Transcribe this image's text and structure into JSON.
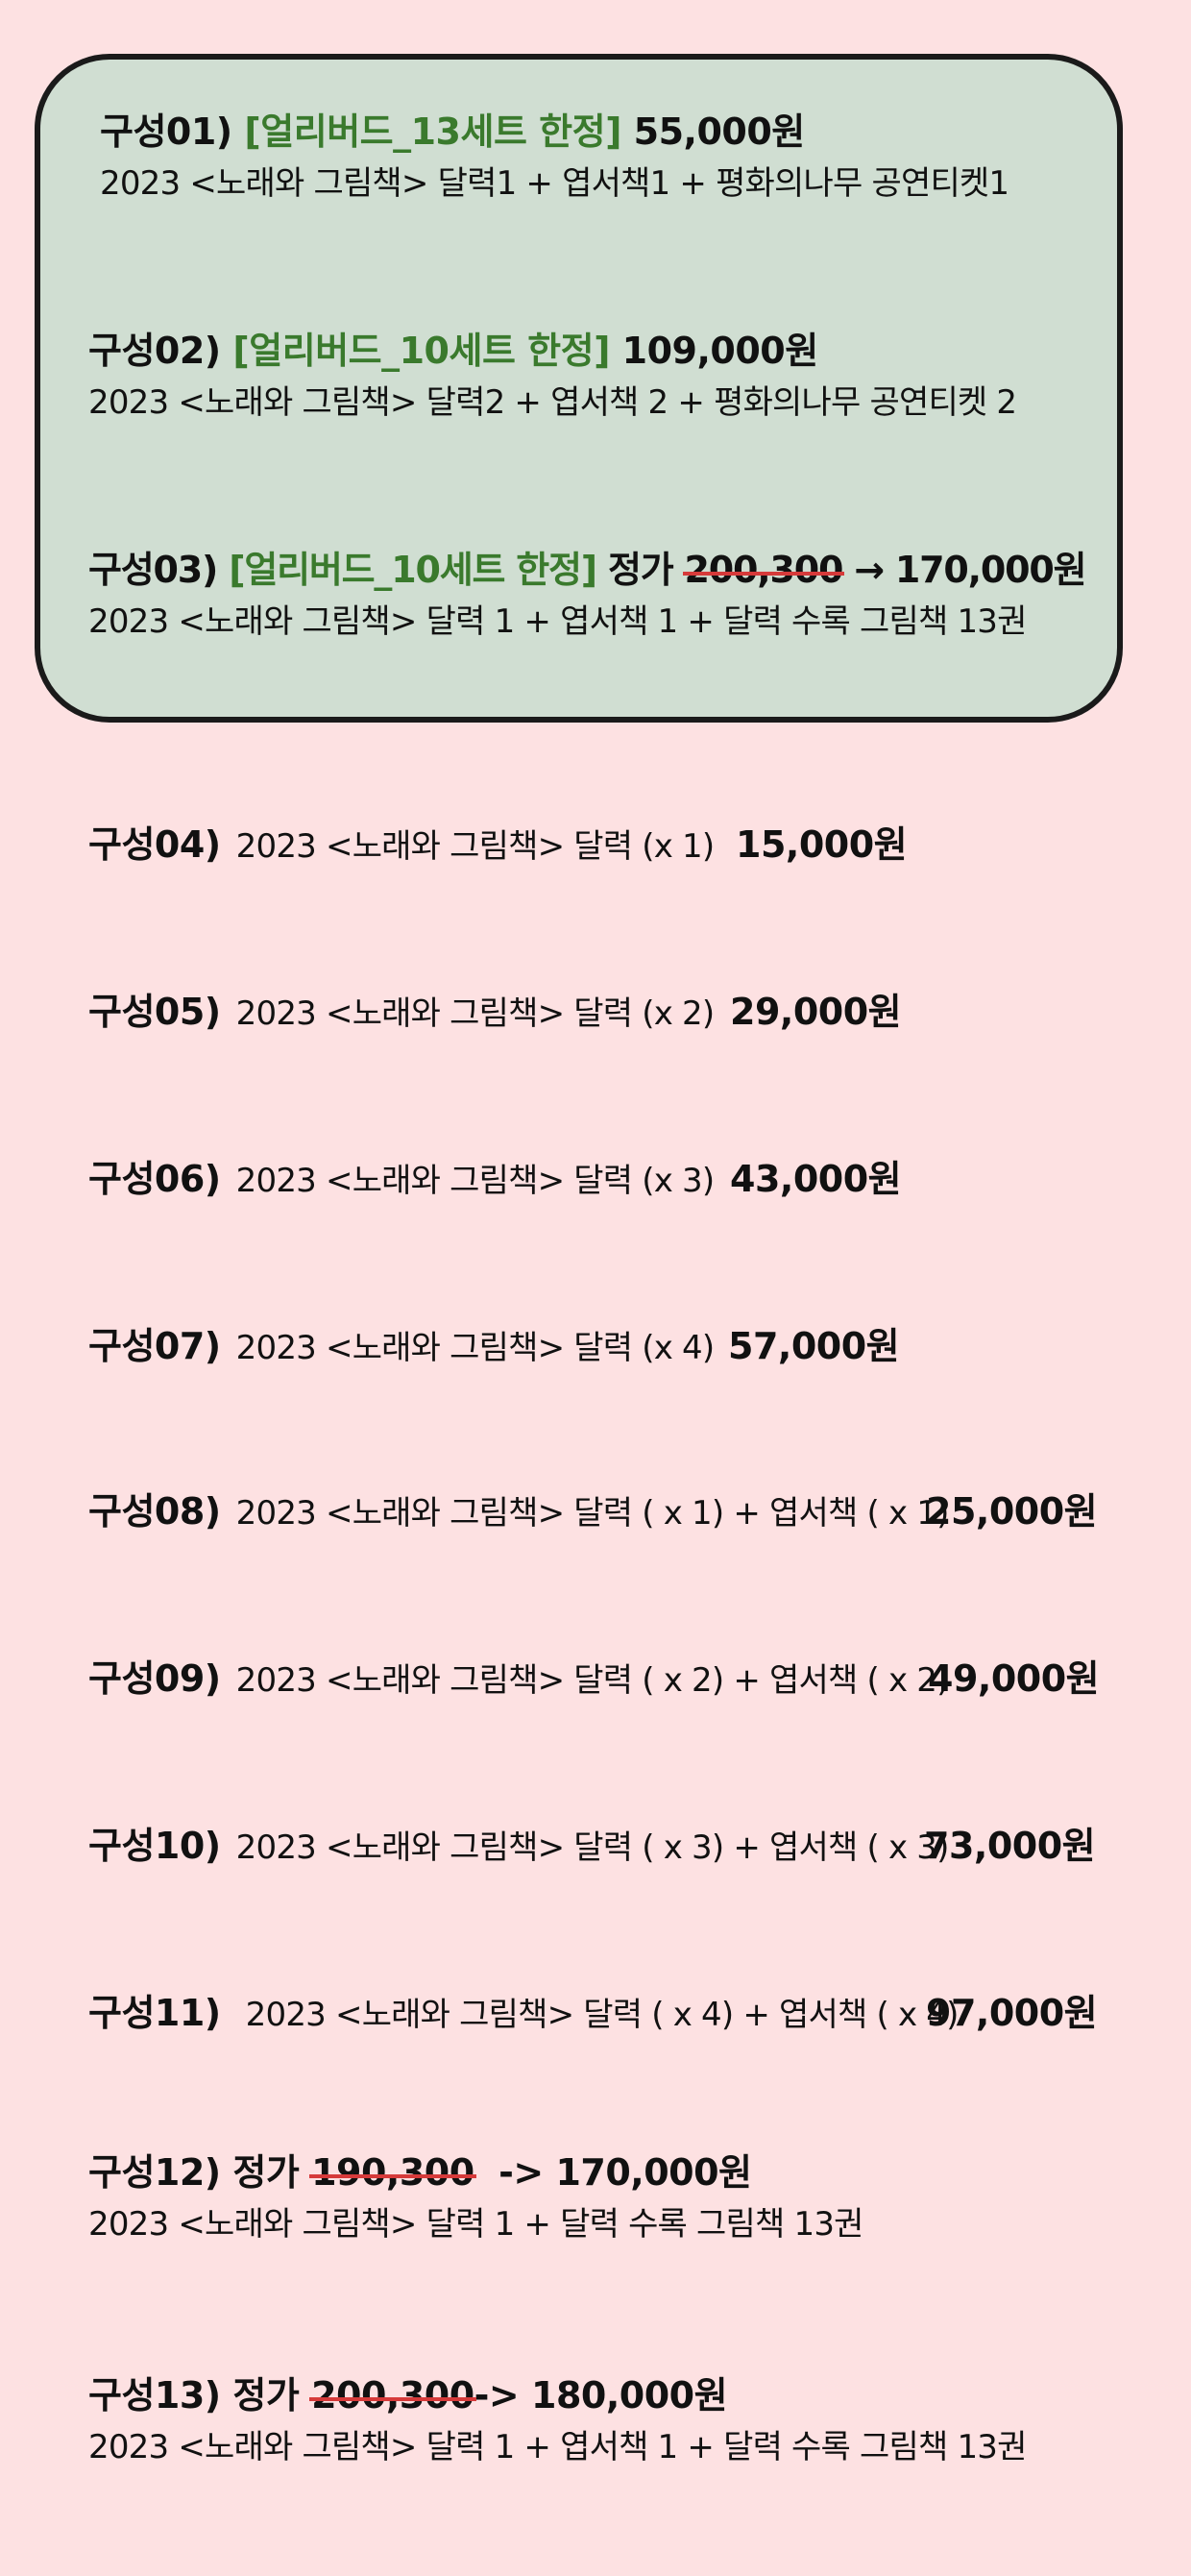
{
  "early_bird": [
    {
      "label": "구성01)",
      "tag": "[얼리버드_13세트 한정]",
      "price": "55,000원",
      "desc": "2023 <노래와 그림책> 달력1 + 엽서책1 + 평화의나무 공연티켓1"
    },
    {
      "label": "구성02)",
      "tag": "[얼리버드_10세트 한정]",
      "price": "109,000원",
      "desc": "2023 <노래와 그림책> 달력2 + 엽서책 2 +  평화의나무 공연티켓 2"
    },
    {
      "label": "구성03)",
      "tag": "[얼리버드_10세트 한정]",
      "price_prefix": "정가",
      "old_price": "200,300",
      "arrow": "→",
      "price": "170,000원",
      "desc": "2023 <노래와 그림책> 달력 1 + 엽서책 1 + 달력 수록 그림책 13권"
    }
  ],
  "options": [
    {
      "label": "구성04)",
      "desc": "2023 <노래와 그림책> 달력 (x 1)",
      "price": "15,000원"
    },
    {
      "label": "구성05)",
      "desc": "2023 <노래와 그림책> 달력 (x 2)",
      "price": "29,000원"
    },
    {
      "label": "구성06)",
      "desc": "2023 <노래와 그림책> 달력 (x 3)",
      "price": "43,000원"
    },
    {
      "label": "구성07)",
      "desc": "2023 <노래와 그림책> 달력 (x 4)",
      "price": "57,000원"
    },
    {
      "label": "구성08)",
      "desc": "2023 <노래와 그림책> 달력 ( x 1) + 엽서책 ( x 1)",
      "price": "25,000원"
    },
    {
      "label": "구성09)",
      "desc": "2023 <노래와 그림책> 달력 ( x 2) + 엽서책 ( x 2)",
      "price": "49,000원"
    },
    {
      "label": "구성10)",
      "desc": "2023 <노래와 그림책> 달력 ( x 3) + 엽서책 ( x 3)",
      "price": "73,000원"
    },
    {
      "label": "구성11)",
      "desc": "2023 <노래와 그림책> 달력 ( x 4) + 엽서책 ( x 4)",
      "price": "97,000원"
    }
  ],
  "bundles": [
    {
      "label": "구성12)",
      "price_prefix": "정가",
      "old_price": "190,300",
      "arrow": "->",
      "price": "170,000원",
      "desc": "2023 <노래와 그림책> 달력 1 + 달력 수록  그림책 13권"
    },
    {
      "label": "구성13)",
      "price_prefix": "정가",
      "old_price": "200,300",
      "arrow": "->",
      "price": "180,000원",
      "desc": "2023 <노래와 그림책> 달력 1 + 엽서책 1  + 달력 수록  그림책 13권"
    }
  ],
  "colors": {
    "background": "#fde1e2",
    "early_box": "#d0ded2",
    "green_tag": "#3a7a2d",
    "strike": "#d63a3a"
  }
}
